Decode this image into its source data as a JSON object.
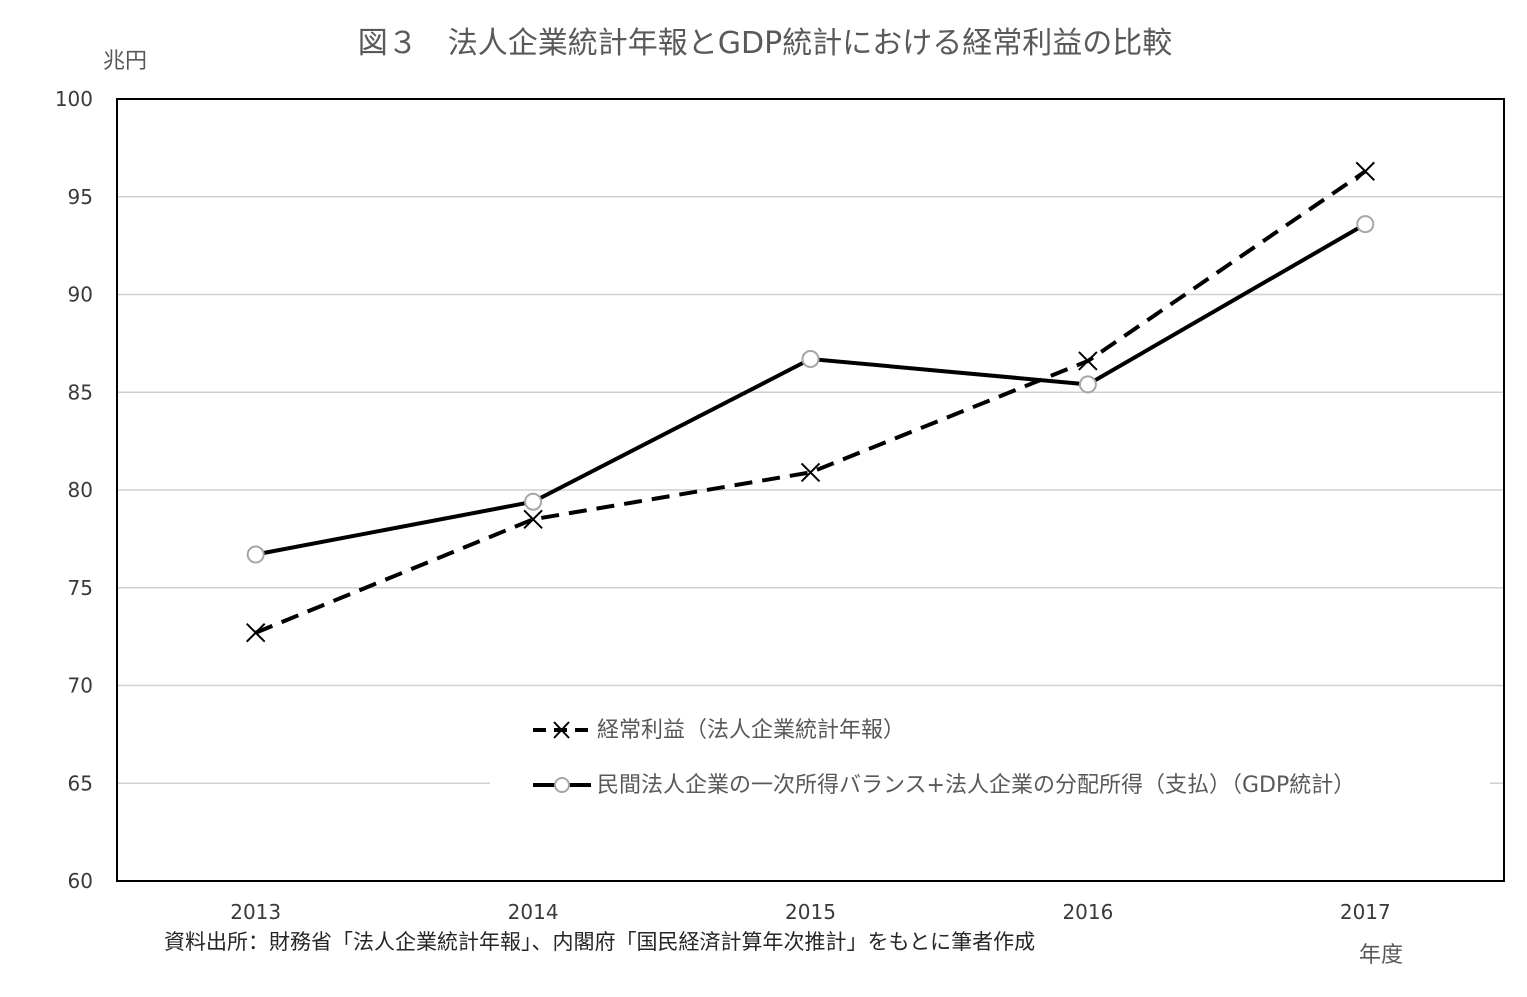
{
  "chart_data": {
    "type": "line",
    "title": "図３　法人企業統計年報とGDP統計における経常利益の比較",
    "ylabel": "兆円",
    "xlabel": "年度",
    "ylim": [
      60,
      100
    ],
    "yticks": [
      60,
      65,
      70,
      75,
      80,
      85,
      90,
      95,
      100
    ],
    "categories": [
      "2013",
      "2014",
      "2015",
      "2016",
      "2017"
    ],
    "grid": true,
    "legend_position": "bottom-center inside plot",
    "series": [
      {
        "name": "経常利益（法人企業統計年報）",
        "values": [
          72.7,
          78.5,
          80.9,
          86.6,
          96.3
        ],
        "style": "dashed",
        "marker": "x",
        "color": "#000000"
      },
      {
        "name": "民間法人企業の一次所得バランス+法人企業の分配所得（支払）（GDP統計）",
        "values": [
          76.7,
          79.4,
          86.7,
          85.4,
          93.6
        ],
        "style": "solid",
        "marker": "circle",
        "color": "#000000",
        "marker_color": "#a6a6a6"
      }
    ],
    "source_note": "資料出所：財務省「法人企業統計年報」、内閣府「国民経済計算年次推計」をもとに筆者作成"
  }
}
